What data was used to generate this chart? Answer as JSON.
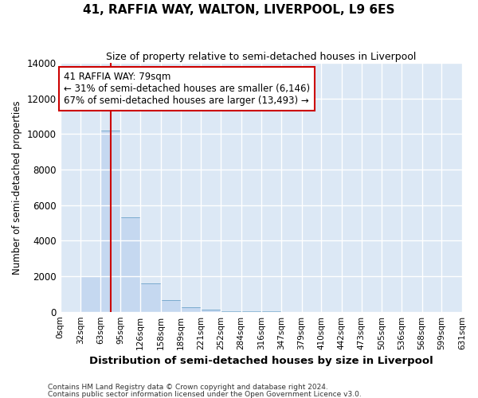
{
  "title": "41, RAFFIA WAY, WALTON, LIVERPOOL, L9 6ES",
  "subtitle": "Size of property relative to semi-detached houses in Liverpool",
  "xlabel": "Distribution of semi-detached houses by size in Liverpool",
  "ylabel": "Number of semi-detached properties",
  "footer_line1": "Contains HM Land Registry data © Crown copyright and database right 2024.",
  "footer_line2": "Contains public sector information licensed under the Open Government Licence v3.0.",
  "property_size": 79,
  "annotation_text": "41 RAFFIA WAY: 79sqm\n← 31% of semi-detached houses are smaller (6,146)\n67% of semi-detached houses are larger (13,493) →",
  "bar_color": "#c5d8f0",
  "bar_edge_color": "#7aabce",
  "vline_color": "#cc0000",
  "annotation_box_color": "#ffffff",
  "annotation_box_edge": "#cc0000",
  "bin_edges": [
    0,
    32,
    63,
    95,
    126,
    158,
    189,
    221,
    252,
    284,
    316,
    347,
    379,
    410,
    442,
    473,
    505,
    536,
    568,
    599,
    631
  ],
  "bin_counts": [
    0,
    2000,
    10200,
    5300,
    1600,
    650,
    250,
    100,
    50,
    20,
    10,
    5,
    0,
    0,
    0,
    0,
    0,
    0,
    0,
    0
  ],
  "ylim": [
    0,
    14000
  ],
  "yticks": [
    0,
    2000,
    4000,
    6000,
    8000,
    10000,
    12000,
    14000
  ],
  "bg_color": "#dce8f5",
  "grid_color": "#ffffff"
}
